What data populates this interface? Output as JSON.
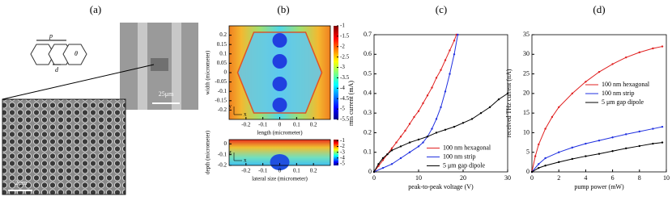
{
  "figure_a": {
    "title": "(a)",
    "labels": [
      "p",
      "d",
      "θ"
    ],
    "scale_bars": [
      "25μm",
      "2μm"
    ]
  },
  "chart_data": [
    {
      "type": "heatmap",
      "title": "(b)",
      "xlabel": "length (micrometer)",
      "ylabel": "width (micrometer)",
      "axes_labels": [
        "y",
        "x"
      ],
      "xlim": [
        -0.3,
        0.3
      ],
      "xticks": [
        -0.2,
        -0.1,
        0,
        0.1,
        0.2
      ],
      "ylim": [
        -0.25,
        0.25
      ],
      "yticks": [
        -0.2,
        -0.15,
        -0.1,
        -0.05,
        0,
        0.05,
        0.1,
        0.15,
        0.2
      ],
      "clim": [
        -5.5,
        -1
      ],
      "cticks": [
        -5.5,
        -5,
        -4.5,
        -4,
        -3.5,
        -3,
        -2.5,
        -2,
        -1.5,
        -1
      ]
    },
    {
      "type": "heatmap",
      "xlabel": "lateral size (micrometer)",
      "ylabel": "depth (micrometer)",
      "axes_labels": [
        "z",
        "x"
      ],
      "xlim": [
        -0.3,
        0.3
      ],
      "xticks": [
        -0.2,
        -0.1,
        0,
        0.1,
        0.2
      ],
      "ylim": [
        -0.2,
        0.04
      ],
      "yticks": [
        -0.2,
        -0.1,
        0
      ],
      "clim": [
        -5.3,
        -0.8
      ],
      "cticks": [
        -5,
        -4,
        -3,
        -2,
        -1
      ]
    },
    {
      "type": "line",
      "title": "(c)",
      "xlabel": "peak-to-peak voltage (V)",
      "ylabel": "rms current (mA)",
      "xlim": [
        0,
        30
      ],
      "xticks": [
        0,
        10,
        20,
        30
      ],
      "ylim": [
        0,
        0.7
      ],
      "yticks": [
        0,
        0.1,
        0.2,
        0.3,
        0.4,
        0.5,
        0.6,
        0.7
      ],
      "legend": "lower right",
      "series": [
        {
          "name": "100 nm hexagonal",
          "color": "#e02020",
          "x": [
            0,
            1,
            2,
            3,
            4,
            5,
            6,
            7,
            8,
            9,
            10,
            11,
            12,
            13,
            14,
            15,
            16,
            17,
            18,
            18.5
          ],
          "values": [
            0,
            0.03,
            0.06,
            0.09,
            0.12,
            0.15,
            0.18,
            0.21,
            0.245,
            0.28,
            0.31,
            0.35,
            0.39,
            0.43,
            0.48,
            0.52,
            0.57,
            0.62,
            0.67,
            0.7
          ]
        },
        {
          "name": "100 nm strip",
          "color": "#2030e0",
          "x": [
            0,
            2,
            4,
            6,
            8,
            10,
            11,
            12,
            13,
            14,
            15,
            16,
            17,
            18,
            18.8
          ],
          "values": [
            0,
            0.02,
            0.04,
            0.07,
            0.1,
            0.13,
            0.15,
            0.18,
            0.22,
            0.27,
            0.33,
            0.41,
            0.5,
            0.6,
            0.7
          ]
        },
        {
          "name": "5 μm gap dipole",
          "color": "#000000",
          "x": [
            0,
            1,
            2,
            3,
            4,
            6,
            8,
            10,
            12,
            14,
            16,
            18,
            20,
            22,
            24,
            26,
            28,
            30
          ],
          "values": [
            0,
            0.04,
            0.07,
            0.09,
            0.11,
            0.13,
            0.15,
            0.165,
            0.18,
            0.2,
            0.215,
            0.23,
            0.25,
            0.27,
            0.3,
            0.33,
            0.37,
            0.4
          ]
        }
      ]
    },
    {
      "type": "line",
      "title": "(d)",
      "xlabel": "pump power (mW)",
      "ylabel": "received THz current (nA)",
      "xlim": [
        0,
        10
      ],
      "xticks": [
        0,
        2,
        4,
        6,
        8,
        10
      ],
      "ylim": [
        0,
        35
      ],
      "yticks": [
        0,
        5,
        10,
        15,
        20,
        25,
        30,
        35
      ],
      "legend": "center right",
      "series": [
        {
          "name": "100 nm hexagonal",
          "color": "#e02020",
          "x": [
            0,
            0.25,
            0.5,
            1,
            1.5,
            2,
            3,
            4,
            5,
            6,
            7,
            8,
            9,
            9.7
          ],
          "values": [
            0,
            4,
            7,
            11,
            14,
            16.5,
            20,
            23,
            25.5,
            27.5,
            29.2,
            30.5,
            31.5,
            32
          ]
        },
        {
          "name": "100 nm strip",
          "color": "#2030e0",
          "x": [
            0,
            0.5,
            1,
            2,
            3,
            4,
            5,
            6,
            7,
            8,
            9,
            9.7
          ],
          "values": [
            0,
            2,
            3.5,
            5,
            6.2,
            7.2,
            8,
            8.8,
            9.6,
            10.3,
            11,
            11.5
          ]
        },
        {
          "name": "5 μm gap dipole",
          "color": "#000000",
          "x": [
            0,
            0.5,
            1,
            2,
            3,
            4,
            5,
            6,
            7,
            8,
            9,
            9.7
          ],
          "values": [
            0,
            1,
            1.6,
            2.5,
            3.3,
            4,
            4.6,
            5.3,
            6,
            6.6,
            7.2,
            7.5
          ]
        }
      ]
    }
  ]
}
